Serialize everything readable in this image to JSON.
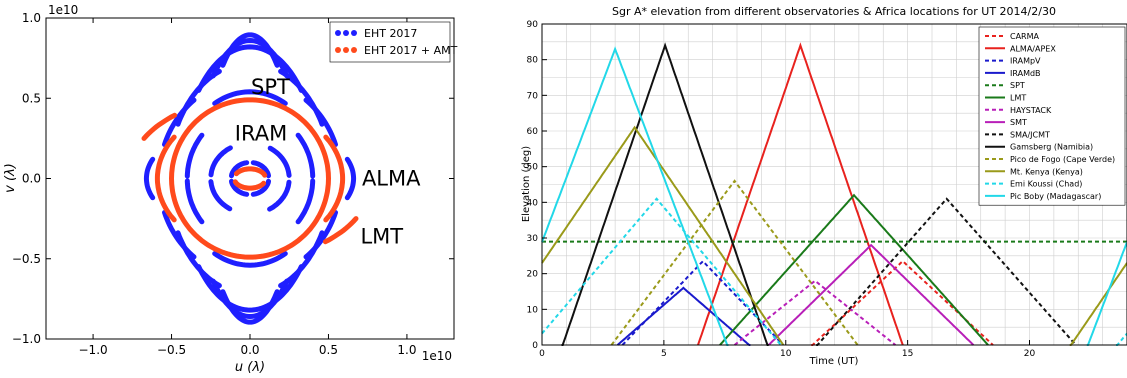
{
  "chart_data": [
    {
      "type": "scatter",
      "title": "",
      "xlabel": "u (λ)",
      "ylabel": "v (λ)",
      "x_multiplier": "1e10",
      "y_multiplier": "1e10",
      "xlim": [
        -1.3,
        1.3
      ],
      "ylim": [
        -1.0,
        1.0
      ],
      "x_ticks": [
        "−1.0",
        "−0.5",
        "0.0",
        "0.5",
        "1.0"
      ],
      "x_tick_values": [
        -1.0,
        -0.5,
        0.0,
        0.5,
        1.0
      ],
      "y_ticks": [
        "−1.0",
        "−0.5",
        "0.0",
        "0.5",
        "1.0"
      ],
      "y_tick_values": [
        -1.0,
        -0.5,
        0.0,
        0.5,
        1.0
      ],
      "legend_position": "top-right",
      "series": [
        {
          "name": "EHT 2017",
          "color": "#1f1fff"
        },
        {
          "name": "EHT 2017 + AMT",
          "color": "#ff4a1c"
        }
      ],
      "annotations": [
        {
          "text": "SPT",
          "x": 0.13,
          "y": 0.57
        },
        {
          "text": "IRAM",
          "x": 0.07,
          "y": 0.28
        },
        {
          "text": "ALMA",
          "x": 0.9,
          "y": 0.0
        },
        {
          "text": "LMT",
          "x": 0.84,
          "y": -0.36
        }
      ],
      "tracks": {
        "blue": [
          {
            "a": 0.28,
            "b": 0.895,
            "t0": 52,
            "t1": 128
          },
          {
            "a": 0.35,
            "b": 0.86,
            "t0": 48,
            "t1": 132
          },
          {
            "a": 0.44,
            "b": 0.82,
            "t0": 42,
            "t1": 138
          },
          {
            "a": 0.52,
            "b": 0.72,
            "t0": 112,
            "t1": 152
          },
          {
            "a": 0.52,
            "b": 0.72,
            "t0": 28,
            "t1": 68
          },
          {
            "a": 0.58,
            "b": 0.62,
            "t0": 128,
            "t1": 160
          },
          {
            "a": 0.58,
            "b": 0.62,
            "t0": 20,
            "t1": 52
          },
          {
            "a": 0.45,
            "b": 0.54,
            "t0": 60,
            "t1": 120
          },
          {
            "a": 0.4,
            "b": 0.42,
            "t0": 140,
            "t1": 178
          },
          {
            "a": 0.4,
            "b": 0.42,
            "t0": 2,
            "t1": 40
          },
          {
            "a": 0.25,
            "b": 0.22,
            "t0": 120,
            "t1": 175
          },
          {
            "a": 0.25,
            "b": 0.22,
            "t0": 5,
            "t1": 60
          },
          {
            "a": 0.12,
            "b": 0.1,
            "t0": 100,
            "t1": 170
          },
          {
            "a": 0.12,
            "b": 0.1,
            "t0": 10,
            "t1": 80
          },
          {
            "a": 0.28,
            "b": 0.895,
            "t0": 232,
            "t1": 308
          },
          {
            "a": 0.35,
            "b": 0.86,
            "t0": 228,
            "t1": 312
          },
          {
            "a": 0.44,
            "b": 0.82,
            "t0": 222,
            "t1": 318
          },
          {
            "a": 0.52,
            "b": 0.72,
            "t0": 292,
            "t1": 332
          },
          {
            "a": 0.52,
            "b": 0.72,
            "t0": 208,
            "t1": 248
          },
          {
            "a": 0.58,
            "b": 0.62,
            "t0": 308,
            "t1": 340
          },
          {
            "a": 0.58,
            "b": 0.62,
            "t0": 200,
            "t1": 232
          },
          {
            "a": 0.45,
            "b": 0.54,
            "t0": 240,
            "t1": 300
          },
          {
            "a": 0.4,
            "b": 0.42,
            "t0": 320,
            "t1": 358
          },
          {
            "a": 0.4,
            "b": 0.42,
            "t0": 182,
            "t1": 220
          },
          {
            "a": 0.25,
            "b": 0.22,
            "t0": 300,
            "t1": 355
          },
          {
            "a": 0.25,
            "b": 0.22,
            "t0": 185,
            "t1": 240
          },
          {
            "a": 0.12,
            "b": 0.1,
            "t0": 280,
            "t1": 350
          },
          {
            "a": 0.12,
            "b": 0.1,
            "t0": 190,
            "t1": 260
          },
          {
            "a": 0.66,
            "b": 0.35,
            "t0": 160,
            "t1": 200
          },
          {
            "a": 0.66,
            "b": 0.35,
            "t0": 340,
            "t1": 380
          }
        ],
        "red": [
          {
            "a": 0.5,
            "b": 0.49,
            "t0": 0,
            "t1": 360
          },
          {
            "a": 0.59,
            "b": 0.45,
            "t0": 145,
            "t1": 215
          },
          {
            "a": 0.59,
            "b": 0.45,
            "t0": 325,
            "t1": 395
          },
          {
            "a": 0.78,
            "b": 0.5,
            "t0": 128,
            "t1": 150
          },
          {
            "a": 0.78,
            "b": 0.5,
            "t0": 308,
            "t1": 330
          },
          {
            "a": 0.1,
            "b": 0.06,
            "t0": 200,
            "t1": 330
          },
          {
            "a": 0.1,
            "b": 0.06,
            "t0": 20,
            "t1": 150
          }
        ]
      }
    },
    {
      "type": "line",
      "title": "Sgr A* elevation from different observatories & Africa locations for UT 2014/2/30",
      "xlabel": "Time (UT)",
      "ylabel": "Elevation (deg)",
      "xlim": [
        0,
        24
      ],
      "ylim": [
        0,
        90
      ],
      "x_ticks": [
        "0",
        "5",
        "10",
        "15",
        "20"
      ],
      "x_tick_values": [
        0,
        5,
        10,
        15,
        20
      ],
      "y_ticks": [
        "0",
        "10",
        "20",
        "30",
        "40",
        "50",
        "60",
        "70",
        "80",
        "90"
      ],
      "y_tick_values": [
        0,
        10,
        20,
        30,
        40,
        50,
        60,
        70,
        80,
        90
      ],
      "grid": true,
      "legend_position": "top-right",
      "series": [
        {
          "name": "CARMA",
          "color": "#e8221e",
          "dash": true,
          "peak": 23.5,
          "transit": 14.8,
          "rise": 11.1
        },
        {
          "name": "ALMA/APEX",
          "color": "#e8221e",
          "dash": false,
          "peak": 84,
          "transit": 10.6,
          "rise": 6.4
        },
        {
          "name": "IRAMpV",
          "color": "#1a1acc",
          "dash": true,
          "peak": 23.5,
          "transit": 6.6,
          "rise": 3.3
        },
        {
          "name": "IRAMdB",
          "color": "#1a1acc",
          "dash": false,
          "peak": 16,
          "transit": 5.8,
          "rise": 3.1
        },
        {
          "name": "SPT",
          "color": "#1a7a1a",
          "dash": true,
          "flat": 29
        },
        {
          "name": "LMT",
          "color": "#1a7a1a",
          "dash": false,
          "peak": 42,
          "transit": 12.8,
          "rise": 7.3
        },
        {
          "name": "HAYSTACK",
          "color": "#b81fb8",
          "dash": true,
          "peak": 18,
          "transit": 11.2,
          "rise": 7.9
        },
        {
          "name": "SMT",
          "color": "#b81fb8",
          "dash": false,
          "peak": 28,
          "transit": 13.5,
          "rise": 9.3
        },
        {
          "name": "SMA/JCMT",
          "color": "#111111",
          "dash": true,
          "peak": 41,
          "transit": 16.6,
          "rise": 11.3
        },
        {
          "name": "Gamsberg (Namibia)",
          "color": "#111111",
          "dash": false,
          "peak": 84,
          "transit": 5.05,
          "rise": 0.85
        },
        {
          "name": "Pico de Fogo (Cape Verde)",
          "color": "#9a9a1a",
          "dash": true,
          "peak": 46,
          "transit": 7.9,
          "rise": 2.85
        },
        {
          "name": "Mt. Kenya (Kenya)",
          "color": "#9a9a1a",
          "dash": false,
          "peak": 61,
          "transit": 3.8,
          "rise": -2.3
        },
        {
          "name": "Emi Koussi (Chad)",
          "color": "#22d8e8",
          "dash": true,
          "peak": 41,
          "transit": 4.7,
          "rise": -0.4
        },
        {
          "name": "Pic Boby (Madagascar)",
          "color": "#22d8e8",
          "dash": false,
          "peak": 83,
          "transit": 3.0,
          "rise": -1.6
        }
      ]
    }
  ]
}
